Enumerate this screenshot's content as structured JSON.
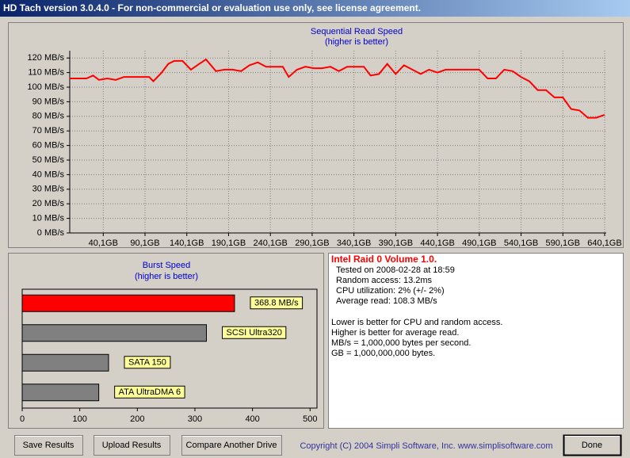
{
  "window": {
    "title": "HD Tach version 3.0.4.0  - For non-commercial or evaluation use only, see license agreement."
  },
  "chart_data": [
    {
      "type": "line",
      "title": "Sequential Read Speed",
      "subtitle": "(higher is better)",
      "color": "#ff0000",
      "grid": true,
      "x": [
        0,
        10,
        20,
        28,
        35,
        45,
        55,
        65,
        75,
        85,
        95,
        100,
        110,
        118,
        125,
        135,
        145,
        155,
        163,
        175,
        185,
        195,
        205,
        215,
        225,
        235,
        245,
        255,
        262,
        272,
        282,
        292,
        302,
        312,
        322,
        332,
        342,
        352,
        360,
        370,
        380,
        390,
        400,
        410,
        420,
        430,
        440,
        450,
        460,
        470,
        480,
        490,
        500,
        510,
        520,
        530,
        540,
        550,
        560,
        570,
        580,
        590,
        600,
        610,
        620,
        630,
        640
      ],
      "values": [
        106,
        106,
        106,
        108,
        105,
        106,
        105,
        107,
        107,
        107,
        107,
        104,
        110,
        116,
        118,
        118,
        112,
        116,
        119,
        111,
        112,
        112,
        111,
        115,
        117,
        114,
        114,
        114,
        107,
        112,
        114,
        113,
        113,
        114,
        111,
        114,
        114,
        114,
        108,
        109,
        116,
        109,
        115,
        112,
        109,
        112,
        110,
        112,
        112,
        112,
        112,
        112,
        106,
        106,
        112,
        111,
        107,
        104,
        98,
        98,
        93,
        93,
        85,
        84,
        79,
        79,
        81
      ],
      "xlim": [
        0,
        642
      ],
      "ylim": [
        0,
        125
      ],
      "xticks": [
        {
          "value": 40.1,
          "label": "40,1GB"
        },
        {
          "value": 90.1,
          "label": "90,1GB"
        },
        {
          "value": 140.1,
          "label": "140,1GB"
        },
        {
          "value": 190.1,
          "label": "190,1GB"
        },
        {
          "value": 240.1,
          "label": "240,1GB"
        },
        {
          "value": 290.1,
          "label": "290,1GB"
        },
        {
          "value": 340.1,
          "label": "340,1GB"
        },
        {
          "value": 390.1,
          "label": "390,1GB"
        },
        {
          "value": 440.1,
          "label": "440,1GB"
        },
        {
          "value": 490.1,
          "label": "490,1GB"
        },
        {
          "value": 540.1,
          "label": "540,1GB"
        },
        {
          "value": 590.1,
          "label": "590,1GB"
        },
        {
          "value": 640.1,
          "label": "640,1GB"
        }
      ],
      "yticks": [
        {
          "value": 0,
          "label": "0 MB/s"
        },
        {
          "value": 10,
          "label": "10 MB/s"
        },
        {
          "value": 20,
          "label": "20 MB/s"
        },
        {
          "value": 30,
          "label": "30 MB/s"
        },
        {
          "value": 40,
          "label": "40 MB/s"
        },
        {
          "value": 50,
          "label": "50 MB/s"
        },
        {
          "value": 60,
          "label": "60 MB/s"
        },
        {
          "value": 70,
          "label": "70 MB/s"
        },
        {
          "value": 80,
          "label": "80 MB/s"
        },
        {
          "value": 90,
          "label": "90 MB/s"
        },
        {
          "value": 100,
          "label": "100 MB/s"
        },
        {
          "value": 110,
          "label": "110 MB/s"
        },
        {
          "value": 120,
          "label": "120 MB/s"
        }
      ]
    },
    {
      "type": "bar",
      "orientation": "horizontal",
      "title": "Burst Speed",
      "subtitle": "(higher is better)",
      "categories": [
        null,
        "SCSI Ultra320",
        "SATA 150",
        "ATA UltraDMA 6"
      ],
      "values": [
        368.8,
        320,
        150,
        133
      ],
      "value_labels": [
        "368.8 MB/s",
        null,
        null,
        null
      ],
      "colors": [
        "#ff0000",
        "#808080",
        "#808080",
        "#808080"
      ],
      "xlim": [
        0,
        512
      ],
      "xticks": [
        0,
        100,
        200,
        300,
        400,
        500
      ]
    }
  ],
  "info": {
    "drive": "Intel Raid 0 Volume 1.0.",
    "lines": [
      "Tested on 2008-02-28 at 18:59",
      "Random access: 13.2ms",
      "CPU utilization: 2% (+/- 2%)",
      "Average read: 108.3 MB/s"
    ],
    "notes": [
      "Lower is better for CPU and random access.",
      "Higher is better for average read.",
      "MB/s = 1,000,000 bytes per second.",
      "GB = 1,000,000,000 bytes."
    ]
  },
  "buttons": [
    "Save Results",
    "Upload Results",
    "Compare Another Drive",
    "Done"
  ],
  "copyright": "Copyright (C) 2004 Simpli Software, Inc. www.simplisoftware.com"
}
